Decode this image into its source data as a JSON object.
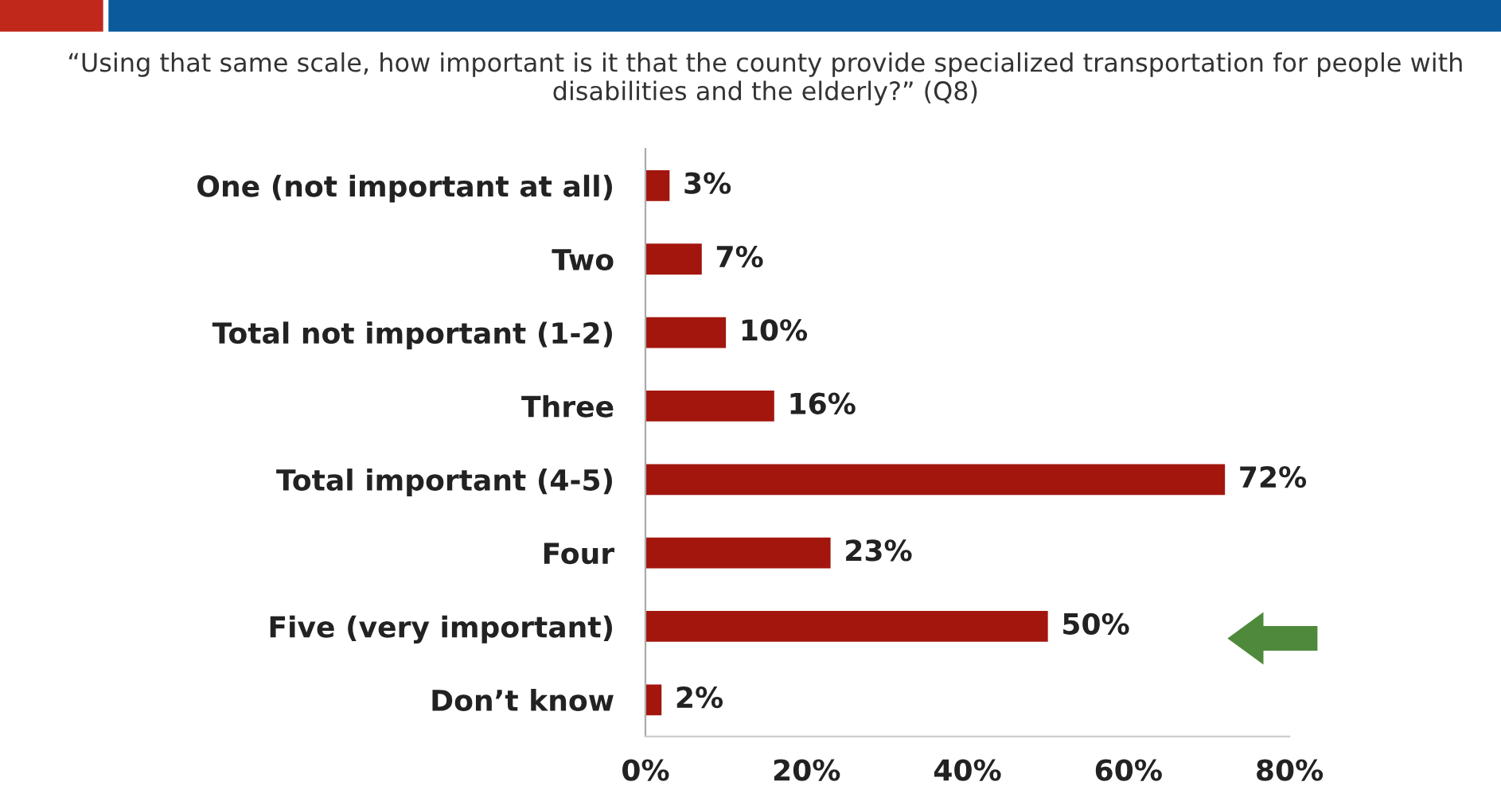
{
  "chart_data": {
    "type": "bar",
    "orientation": "horizontal",
    "title": "“Using that same scale, how important is it that the county provide specialized transportation for people with disabilities and the elderly?” (Q8)",
    "categories": [
      "One (not important at all)",
      "Two",
      "Total not important (1-2)",
      "Three",
      "Total important (4-5)",
      "Four",
      "Five (very important)",
      "Don’t know"
    ],
    "values": [
      3,
      7,
      10,
      16,
      72,
      23,
      50,
      2
    ],
    "value_labels": [
      "3%",
      "7%",
      "10%",
      "16%",
      "72%",
      "23%",
      "50%",
      "2%"
    ],
    "color": "#a3160e",
    "xlim": [
      0,
      80
    ],
    "xticks": [
      {
        "value": 0,
        "label": "0%"
      },
      {
        "value": 20,
        "label": "20%"
      },
      {
        "value": 40,
        "label": "40%"
      },
      {
        "value": 60,
        "label": "60%"
      },
      {
        "value": 80,
        "label": "80%"
      }
    ],
    "grid": false,
    "legend": false
  }
}
